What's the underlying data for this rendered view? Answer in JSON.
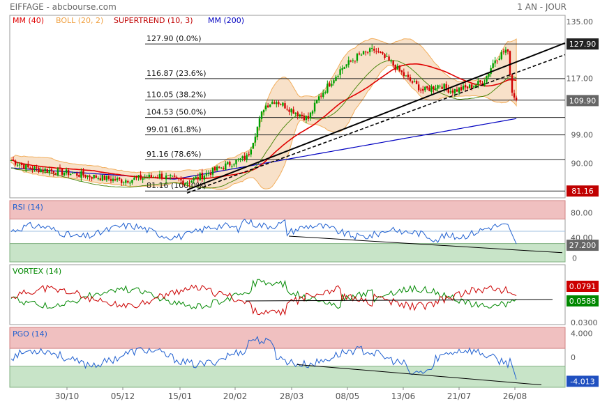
{
  "header": {
    "left": "EIFFAGE - abcbourse.com",
    "right": "1 AN - JOUR"
  },
  "colors": {
    "mm40": "#e00000",
    "boll": "#f0a040",
    "boll_fill": "#f7dcc0",
    "supertrend": "#c00000",
    "mm200": "#0000c0",
    "rsi": "#2060d0",
    "vortex_plus": "#008800",
    "vortex_minus": "#cc0000",
    "pgo": "#2060d0",
    "zone_high": "#f0c0c0",
    "zone_low": "#c8e4c8",
    "candle_up": "#00a000",
    "candle_down": "#d00000"
  },
  "legends": {
    "mm40": "MM (40)",
    "boll": "BOLL (20, 2)",
    "supertrend": "SUPERTREND (10, 3)",
    "mm200": "MM (200)",
    "rsi": "RSI (14)",
    "vortex": "VORTEX (14)",
    "pgo": "PGO (14)"
  },
  "x_ticks": [
    "30/10",
    "05/12",
    "15/01",
    "20/02",
    "28/03",
    "08/05",
    "13/06",
    "21/07",
    "26/08"
  ],
  "price_axis": {
    "ticks": [
      "135.00",
      "117.00",
      "99.00",
      "90.00"
    ],
    "ylim": [
      79,
      137
    ]
  },
  "fibonacci": [
    {
      "label": "127.90 (0.0%)",
      "value": 127.9
    },
    {
      "label": "116.87 (23.6%)",
      "value": 116.87
    },
    {
      "label": "110.05 (38.2%)",
      "value": 110.05
    },
    {
      "label": "104.53 (50.0%)",
      "value": 104.53
    },
    {
      "label": "99.01 (61.8%)",
      "value": 99.01
    },
    {
      "label": "91.16 (78.6%)",
      "value": 91.16
    },
    {
      "label": "81.16 (100.0%)",
      "value": 81.16
    }
  ],
  "price_badges": [
    {
      "text": "127.90",
      "value": 127.9,
      "style": "dark"
    },
    {
      "text": "109.90",
      "value": 109.9,
      "style": "gray"
    },
    {
      "text": "81.16",
      "value": 81.16,
      "style": "red"
    }
  ],
  "rsi_axis": {
    "ticks": [
      "80.00",
      "40.00",
      "0"
    ],
    "ylim": [
      0,
      100
    ],
    "zone_high": 70,
    "zone_low": 30,
    "mid": 50
  },
  "rsi_badge": "27.200",
  "vortex_axis": {
    "ticks": [
      "0.0791",
      "0.0588",
      "0.0300"
    ]
  },
  "vortex_badges": [
    {
      "text": "0.0791",
      "style": "red"
    },
    {
      "text": "0.0588",
      "style": "green"
    }
  ],
  "pgo_axis": {
    "ticks": [
      "4.000",
      "0"
    ],
    "ylim": [
      -5,
      5
    ],
    "zone_high": 1.5,
    "zone_low": -1.5
  },
  "pgo_badge": "-4.013",
  "chart_data": {
    "type": "line",
    "title": "EIFFAGE",
    "x_labels": [
      "30/10",
      "05/12",
      "15/01",
      "20/02",
      "28/03",
      "08/05",
      "13/06",
      "21/07",
      "26/08"
    ],
    "close_series": [
      {
        "date": "start",
        "value": 91.0
      },
      {
        "date": "30/10",
        "value": 87.5
      },
      {
        "date": "05/12",
        "value": 84.5
      },
      {
        "date": "15/01",
        "value": 84.5
      },
      {
        "date": "20/02",
        "value": 90.5
      },
      {
        "date": "mid-03",
        "value": 110.0
      },
      {
        "date": "28/03",
        "value": 106.0
      },
      {
        "date": "08/05",
        "value": 124.0
      },
      {
        "date": "13/06",
        "value": 113.0
      },
      {
        "date": "21/07",
        "value": 114.0
      },
      {
        "date": "mid-08",
        "value": 126.0
      },
      {
        "date": "26/08",
        "value": 109.9
      }
    ],
    "last_close": 109.9,
    "fibonacci_high": 127.9,
    "fibonacci_low": 81.16,
    "rsi_last": 27.2,
    "vortex_last": {
      "plus": 0.0588,
      "minus": 0.0791
    },
    "pgo_last": -4.013
  }
}
